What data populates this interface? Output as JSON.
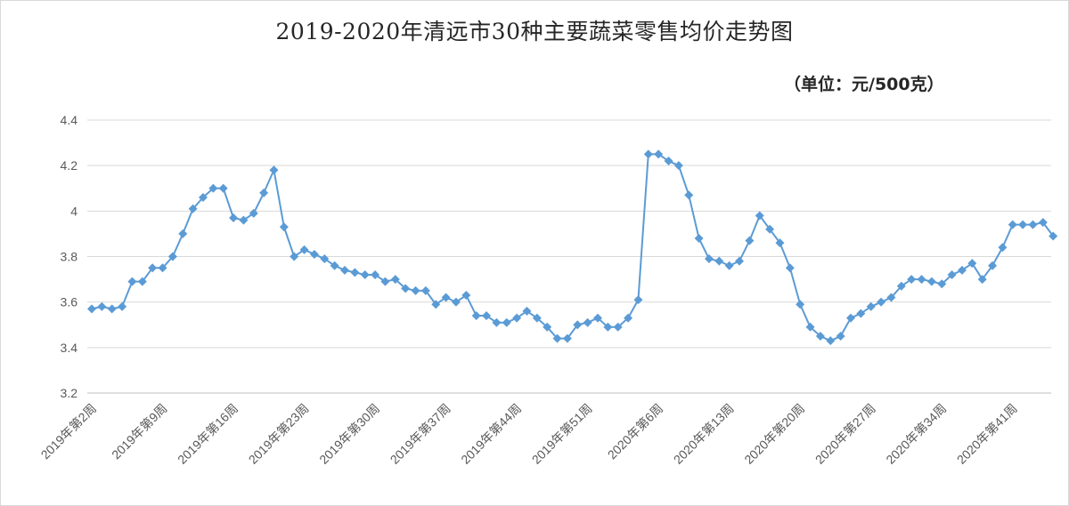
{
  "chart_data": {
    "type": "line",
    "title": "2019-2020年清远市30种主要蔬菜零售均价走势图",
    "subtitle": "（单位：元/500克）",
    "ylim": [
      3.2,
      4.4
    ],
    "yticks": [
      "3.2",
      "3.4",
      "3.6",
      "3.8",
      "4",
      "4.2",
      "4.4"
    ],
    "grid": "horizontal",
    "legend": "none",
    "marker": "diamond",
    "color": "#5b9bd5",
    "x_tick_labels": [
      "2019年第2周",
      "2019年第9周",
      "2019年第16周",
      "2019年第23周",
      "2019年第30周",
      "2019年第37周",
      "2019年第44周",
      "2019年第51周",
      "2020年第6周",
      "2020年第13周",
      "2020年第20周",
      "2020年第27周",
      "2020年第34周",
      "2020年第41周"
    ],
    "x_tick_every": 7,
    "series": [
      {
        "values": [
          3.57,
          3.58,
          3.57,
          3.58,
          3.69,
          3.69,
          3.75,
          3.75,
          3.8,
          3.9,
          4.01,
          4.06,
          4.1,
          4.1,
          3.97,
          3.96,
          3.99,
          4.08,
          4.18,
          3.93,
          3.8,
          3.83,
          3.81,
          3.79,
          3.76,
          3.74,
          3.73,
          3.72,
          3.72,
          3.69,
          3.7,
          3.66,
          3.65,
          3.65,
          3.59,
          3.62,
          3.6,
          3.63,
          3.54,
          3.54,
          3.51,
          3.51,
          3.53,
          3.56,
          3.53,
          3.49,
          3.44,
          3.44,
          3.5,
          3.51,
          3.53,
          3.49,
          3.49,
          3.53,
          3.61,
          4.25,
          4.25,
          4.22,
          4.2,
          4.07,
          3.88,
          3.79,
          3.78,
          3.76,
          3.78,
          3.87,
          3.98,
          3.92,
          3.86,
          3.75,
          3.59,
          3.49,
          3.45,
          3.43,
          3.45,
          3.53,
          3.55,
          3.58,
          3.6,
          3.62,
          3.67,
          3.7,
          3.7,
          3.69,
          3.68,
          3.72,
          3.74,
          3.77,
          3.7,
          3.76,
          3.84,
          3.94,
          3.94,
          3.94,
          3.95,
          3.89
        ]
      }
    ]
  }
}
